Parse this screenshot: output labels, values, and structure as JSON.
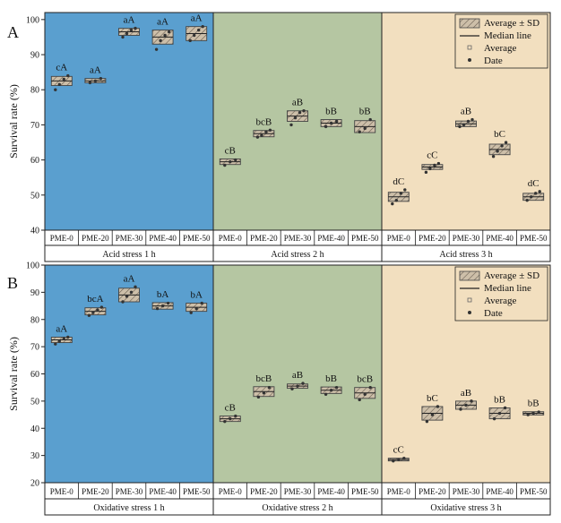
{
  "colors": {
    "bg1": "#5a9fcf",
    "bg2": "#b5c6a2",
    "bg3": "#f2dfbf",
    "box_fill": "#c7b8a4",
    "box_stroke": "#444444",
    "point": "#333333"
  },
  "legend": {
    "items": [
      "Average ± SD",
      "Median line",
      "Average",
      "Date"
    ]
  },
  "chart_data": [
    {
      "type": "box",
      "panel_label": "A",
      "ylabel": "Survival rate (%)",
      "ylim": [
        40,
        102
      ],
      "yticks": [
        40,
        50,
        60,
        70,
        80,
        90,
        100
      ],
      "groups": [
        "Acid stress 1 h",
        "Acid stress 2 h",
        "Acid stress 3 h"
      ],
      "categories": [
        "PME-0",
        "PME-20",
        "PME-30",
        "PME-40",
        "PME-50"
      ],
      "series": [
        {
          "name": "Acid stress 1 h",
          "boxes": [
            {
              "label": "cA",
              "mean": 82.5,
              "sd": 1.3,
              "median": 82.5,
              "points": [
                80.0,
                81.5,
                83.0,
                84.0
              ]
            },
            {
              "label": "aA",
              "mean": 82.6,
              "sd": 0.6,
              "median": 82.5,
              "points": [
                82.0,
                82.5,
                83.2
              ]
            },
            {
              "label": "aA",
              "mean": 96.5,
              "sd": 1.0,
              "median": 96.5,
              "points": [
                95.0,
                96.0,
                97.0,
                97.5
              ]
            },
            {
              "label": "aA",
              "mean": 95.0,
              "sd": 2.0,
              "median": 95.0,
              "points": [
                91.5,
                94.0,
                95.5,
                96.5
              ]
            },
            {
              "label": "aA",
              "mean": 96.0,
              "sd": 2.0,
              "median": 96.0,
              "points": [
                94.0,
                95.5,
                97.0,
                98.0
              ]
            }
          ]
        },
        {
          "name": "Acid stress 2 h",
          "boxes": [
            {
              "label": "cB",
              "mean": 59.5,
              "sd": 0.8,
              "median": 59.5,
              "points": [
                58.5,
                59.5,
                60.0
              ]
            },
            {
              "label": "bcB",
              "mean": 67.5,
              "sd": 0.9,
              "median": 67.5,
              "points": [
                66.5,
                67.0,
                68.0,
                68.5
              ]
            },
            {
              "label": "aB",
              "mean": 72.5,
              "sd": 1.5,
              "median": 72.5,
              "points": [
                70.0,
                72.0,
                73.5,
                74.0
              ]
            },
            {
              "label": "bB",
              "mean": 70.5,
              "sd": 1.0,
              "median": 70.5,
              "points": [
                69.5,
                70.5,
                71.0
              ]
            },
            {
              "label": "bB",
              "mean": 69.5,
              "sd": 1.7,
              "median": 69.5,
              "points": [
                68.0,
                69.0,
                71.5
              ]
            }
          ]
        },
        {
          "name": "Acid stress 3 h",
          "boxes": [
            {
              "label": "dC",
              "mean": 49.5,
              "sd": 1.3,
              "median": 49.5,
              "points": [
                47.5,
                48.5,
                50.5,
                51.5
              ]
            },
            {
              "label": "cC",
              "mean": 58.0,
              "sd": 0.7,
              "median": 58.0,
              "points": [
                56.5,
                57.5,
                58.5,
                59.0
              ]
            },
            {
              "label": "aB",
              "mean": 70.3,
              "sd": 0.8,
              "median": 70.3,
              "points": [
                69.5,
                70.0,
                71.0,
                71.5
              ]
            },
            {
              "label": "bC",
              "mean": 63.0,
              "sd": 1.5,
              "median": 63.0,
              "points": [
                61.0,
                62.5,
                64.0,
                65.0
              ]
            },
            {
              "label": "dC",
              "mean": 49.5,
              "sd": 1.0,
              "median": 49.5,
              "points": [
                48.5,
                49.5,
                50.5,
                51.0
              ]
            }
          ]
        }
      ]
    },
    {
      "type": "box",
      "panel_label": "B",
      "ylabel": "Survival rate (%)",
      "ylim": [
        20,
        100
      ],
      "yticks": [
        20,
        30,
        40,
        50,
        60,
        70,
        80,
        90,
        100
      ],
      "groups": [
        "Oxidative stress 1 h",
        "Oxidative stress 2 h",
        "Oxidative stress 3 h"
      ],
      "categories": [
        "PME-0",
        "PME-20",
        "PME-30",
        "PME-40",
        "PME-50"
      ],
      "series": [
        {
          "name": "Oxidative stress 1 h",
          "boxes": [
            {
              "label": "aA",
              "mean": 72.5,
              "sd": 1.0,
              "median": 72.5,
              "points": [
                71.0,
                72.0,
                73.0,
                73.5
              ]
            },
            {
              "label": "bcA",
              "mean": 83.0,
              "sd": 1.3,
              "median": 83.0,
              "points": [
                81.5,
                82.5,
                83.5,
                84.5
              ]
            },
            {
              "label": "aA",
              "mean": 89.0,
              "sd": 2.5,
              "median": 89.0,
              "points": [
                86.5,
                88.5,
                90.0,
                92.0
              ]
            },
            {
              "label": "bA",
              "mean": 85.0,
              "sd": 1.2,
              "median": 85.0,
              "points": [
                84.0,
                85.0,
                86.0
              ]
            },
            {
              "label": "bA",
              "mean": 84.5,
              "sd": 1.5,
              "median": 84.5,
              "points": [
                82.5,
                84.0,
                86.0
              ]
            }
          ]
        },
        {
          "name": "Oxidative stress 2 h",
          "boxes": [
            {
              "label": "cB",
              "mean": 43.5,
              "sd": 1.0,
              "median": 43.5,
              "points": [
                42.5,
                43.5,
                44.5
              ]
            },
            {
              "label": "bcB",
              "mean": 53.5,
              "sd": 1.8,
              "median": 53.5,
              "points": [
                51.5,
                53.0,
                55.0
              ]
            },
            {
              "label": "aB",
              "mean": 55.5,
              "sd": 0.8,
              "median": 55.5,
              "points": [
                54.5,
                55.5,
                56.5
              ]
            },
            {
              "label": "bB",
              "mean": 54.0,
              "sd": 1.2,
              "median": 54.0,
              "points": [
                52.5,
                54.0,
                55.0
              ]
            },
            {
              "label": "bcB",
              "mean": 53.0,
              "sd": 2.0,
              "median": 53.0,
              "points": [
                50.5,
                52.5,
                55.0
              ]
            }
          ]
        },
        {
          "name": "Oxidative stress 3 h",
          "boxes": [
            {
              "label": "cC",
              "mean": 28.5,
              "sd": 0.5,
              "median": 28.5,
              "points": [
                28.0,
                28.5,
                29.0
              ]
            },
            {
              "label": "bC",
              "mean": 45.5,
              "sd": 2.5,
              "median": 45.5,
              "points": [
                42.5,
                45.0,
                48.0
              ]
            },
            {
              "label": "aB",
              "mean": 48.5,
              "sd": 1.5,
              "median": 48.5,
              "points": [
                47.0,
                48.5,
                50.0
              ]
            },
            {
              "label": "bB",
              "mean": 45.5,
              "sd": 2.0,
              "median": 45.5,
              "points": [
                43.5,
                45.5,
                47.5
              ]
            },
            {
              "label": "bB",
              "mean": 45.5,
              "sd": 0.6,
              "median": 45.5,
              "points": [
                45.0,
                45.5,
                46.0
              ]
            }
          ]
        }
      ]
    }
  ]
}
